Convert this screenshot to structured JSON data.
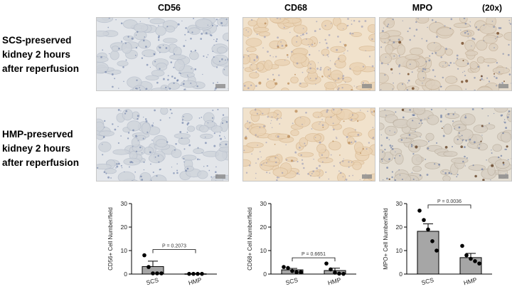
{
  "headers": {
    "cd56": "CD56",
    "cd68": "CD68",
    "mpo": "MPO",
    "magnification": "(20x)"
  },
  "rows": {
    "scs": [
      "SCS-preserved",
      "kidney 2 hours",
      "after reperfusion"
    ],
    "hmp": [
      "HMP-preserved",
      "kidney 2 hours",
      "after reperfusion"
    ]
  },
  "colors": {
    "bar_scs": "#a6a6a6",
    "bar_hmp": "#a6a6a6",
    "bar_edge": "#000000",
    "tissue_blue_bg": "#e3e6ea",
    "tissue_tan_bg": "#f1e2cc",
    "tissue_mpo_bg": "#e7dccd"
  },
  "chart_data": [
    {
      "type": "bar",
      "categories": [
        "SCS",
        "HMP"
      ],
      "values": [
        3.2,
        0.1
      ],
      "error": [
        2.3,
        0.1
      ],
      "points": [
        [
          8.0,
          3.0,
          0.3,
          0.3,
          0.3
        ],
        [
          0.1,
          0.1,
          0.1,
          0.1
        ]
      ],
      "ylabel": "CD56+ Cell Number/field",
      "ylim": [
        0,
        30
      ],
      "yticks": [
        0,
        10,
        20,
        30
      ],
      "p_value": "P = 0.2073"
    },
    {
      "type": "bar",
      "categories": [
        "SCS",
        "HMP"
      ],
      "values": [
        1.8,
        1.5
      ],
      "error": [
        0.6,
        1.0
      ],
      "points": [
        [
          3.0,
          2.6,
          1.3,
          0.8,
          0.8
        ],
        [
          4.5,
          2.0,
          0.6,
          0.2,
          0.1
        ]
      ],
      "ylabel": "CD68+ Cell Number/field",
      "ylim": [
        0,
        30
      ],
      "yticks": [
        0,
        10,
        20,
        30
      ],
      "p_value": "P = 0.6651"
    },
    {
      "type": "bar",
      "categories": [
        "SCS",
        "HMP"
      ],
      "values": [
        18.2,
        7.0
      ],
      "error": [
        3.2,
        1.8
      ],
      "points": [
        [
          27.0,
          23.0,
          19.0,
          14.0,
          10.0
        ],
        [
          12.0,
          8.0,
          6.5,
          5.5,
          4.5
        ]
      ],
      "ylabel": "MPO+ Cell Number/field",
      "ylim": [
        0,
        30
      ],
      "yticks": [
        0,
        10,
        20,
        30
      ],
      "p_value": "P = 0.0036"
    }
  ]
}
